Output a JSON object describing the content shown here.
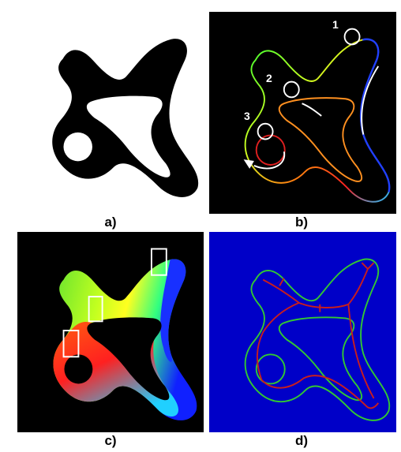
{
  "panels": {
    "a": {
      "caption": "a)"
    },
    "b": {
      "caption": "b)",
      "markers": [
        "1",
        "2",
        "3"
      ]
    },
    "c": {
      "caption": "c)"
    },
    "d": {
      "caption": "d)"
    }
  },
  "colors": {
    "shape_fill": "#000000",
    "dark_background": "#000000",
    "blue_background": "#0000c8",
    "skeleton": "#c81e1e",
    "outline": "#32c832",
    "annotation": "#ffffff"
  }
}
